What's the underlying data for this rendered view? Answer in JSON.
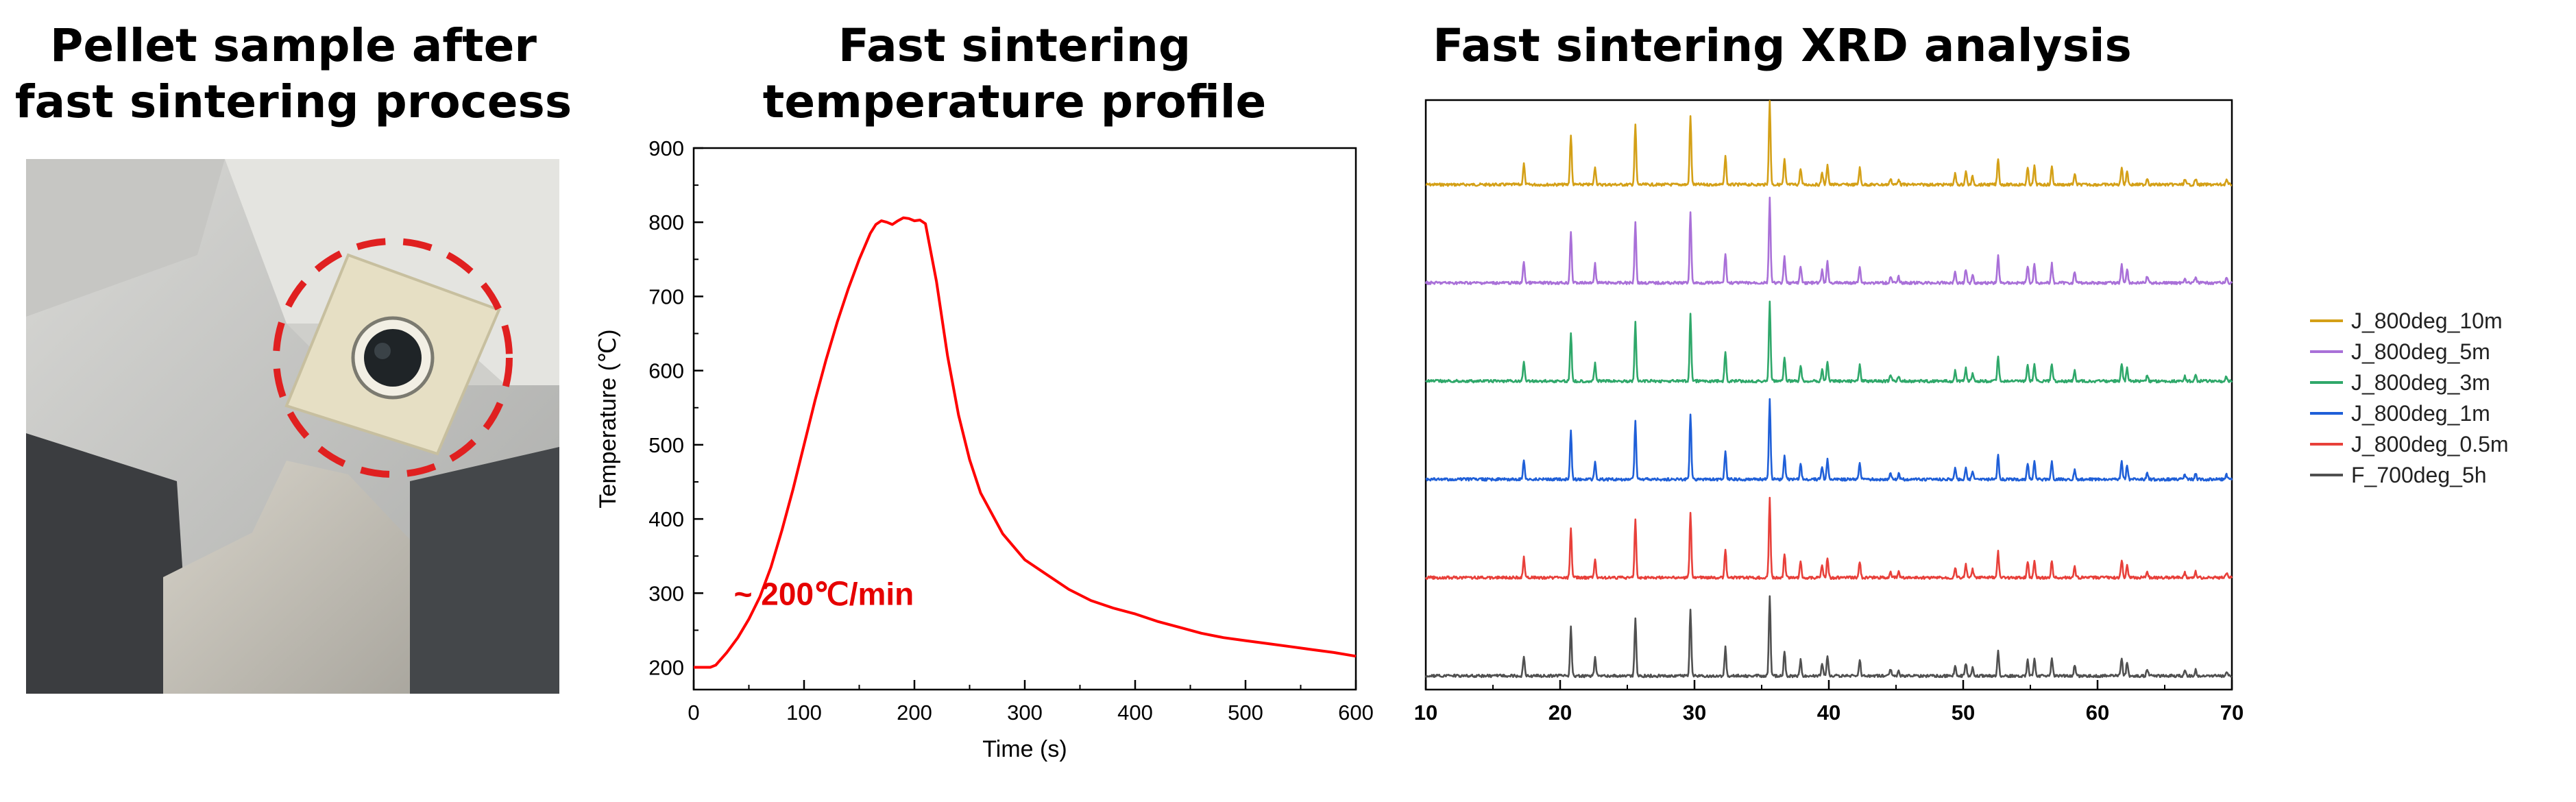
{
  "panels": {
    "photo_title_line1": "Pellet sample after",
    "photo_title_line2": "fast sintering process",
    "temp_title_line1": "Fast sintering",
    "temp_title_line2": "temperature profile",
    "xrd_title": "Fast sintering XRD analysis"
  },
  "colors": {
    "profile_line": "#ff0000",
    "annotation": "#e60000",
    "highlight_circle": "#e02020",
    "series": [
      "#d4a017",
      "#a970d8",
      "#2fa86a",
      "#1f5fd8",
      "#e8403a",
      "#505050"
    ]
  },
  "chart_data": [
    {
      "type": "line",
      "title": "",
      "xlabel": "Time (s)",
      "ylabel": "Temperature (℃)",
      "xlim": [
        0,
        600
      ],
      "ylim": [
        170,
        900
      ],
      "x_ticks": [
        0,
        100,
        200,
        300,
        400,
        500,
        600
      ],
      "y_ticks": [
        200,
        300,
        400,
        500,
        600,
        700,
        800,
        900
      ],
      "annotation": "~ 200℃/min",
      "grid": false,
      "series": [
        {
          "x": [
            0,
            15,
            20,
            30,
            40,
            50,
            60,
            70,
            80,
            90,
            100,
            110,
            120,
            130,
            140,
            150,
            160,
            165,
            170,
            175,
            180,
            185,
            190,
            195,
            200,
            205,
            210,
            220,
            230,
            240,
            250,
            260,
            280,
            300,
            320,
            340,
            360,
            380,
            400,
            420,
            440,
            460,
            480,
            500,
            520,
            540,
            560,
            580,
            600
          ],
          "y": [
            200,
            200,
            203,
            220,
            240,
            265,
            295,
            335,
            385,
            440,
            500,
            560,
            615,
            665,
            710,
            750,
            785,
            797,
            802,
            800,
            797,
            802,
            806,
            805,
            802,
            803,
            798,
            720,
            620,
            540,
            480,
            435,
            380,
            345,
            325,
            305,
            290,
            280,
            272,
            262,
            254,
            246,
            240,
            236,
            232,
            228,
            224,
            220,
            215
          ]
        }
      ]
    },
    {
      "type": "line",
      "title": "",
      "xlim": [
        10,
        70
      ],
      "x_ticks": [
        10,
        20,
        30,
        40,
        50,
        60,
        70
      ],
      "legend_position": "right",
      "peaks": [
        {
          "x": 17.3,
          "h": 0.25
        },
        {
          "x": 20.8,
          "h": 0.6
        },
        {
          "x": 22.6,
          "h": 0.22
        },
        {
          "x": 25.6,
          "h": 0.72
        },
        {
          "x": 29.7,
          "h": 0.82
        },
        {
          "x": 32.3,
          "h": 0.35
        },
        {
          "x": 35.6,
          "h": 1.0
        },
        {
          "x": 36.7,
          "h": 0.3
        },
        {
          "x": 37.9,
          "h": 0.2
        },
        {
          "x": 39.5,
          "h": 0.15
        },
        {
          "x": 39.9,
          "h": 0.25
        },
        {
          "x": 42.3,
          "h": 0.2
        },
        {
          "x": 44.6,
          "h": 0.08
        },
        {
          "x": 45.2,
          "h": 0.07
        },
        {
          "x": 49.4,
          "h": 0.13
        },
        {
          "x": 50.2,
          "h": 0.16
        },
        {
          "x": 50.7,
          "h": 0.1
        },
        {
          "x": 52.6,
          "h": 0.32
        },
        {
          "x": 54.8,
          "h": 0.2
        },
        {
          "x": 55.3,
          "h": 0.22
        },
        {
          "x": 56.6,
          "h": 0.22
        },
        {
          "x": 58.3,
          "h": 0.13
        },
        {
          "x": 61.8,
          "h": 0.22
        },
        {
          "x": 62.2,
          "h": 0.17
        },
        {
          "x": 63.7,
          "h": 0.08
        },
        {
          "x": 66.5,
          "h": 0.06
        },
        {
          "x": 67.3,
          "h": 0.07
        },
        {
          "x": 69.6,
          "h": 0.06
        }
      ],
      "series": [
        {
          "name": "J_800deg_10m",
          "peak_scale": 0.95
        },
        {
          "name": "J_800deg_5m",
          "peak_scale": 0.98
        },
        {
          "name": "J_800deg_3m",
          "peak_scale": 0.92
        },
        {
          "name": "J_800deg_1m",
          "peak_scale": 0.92
        },
        {
          "name": "J_800deg_0.5m",
          "peak_scale": 0.92
        },
        {
          "name": "F_700deg_5h",
          "peak_scale": 0.92
        }
      ]
    }
  ]
}
